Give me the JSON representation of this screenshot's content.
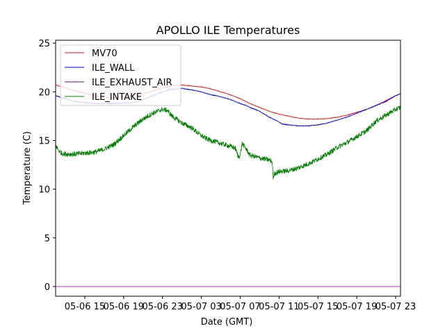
{
  "chart_data": {
    "type": "line",
    "title": "APOLLO ILE Temperatures",
    "xlabel": "Date (GMT)",
    "ylabel": "Temperature (C)",
    "x_unit": "hours since 05-06 12:00 GMT",
    "xlim": [
      0,
      35.5
    ],
    "ylim": [
      -1,
      25.3
    ],
    "grid": false,
    "legend_position": "upper-left",
    "x_ticks": [
      {
        "value": 3,
        "label": "05-06 15"
      },
      {
        "value": 7,
        "label": "05-06 19"
      },
      {
        "value": 11,
        "label": "05-06 23"
      },
      {
        "value": 15,
        "label": "05-07 03"
      },
      {
        "value": 19,
        "label": "05-07 07"
      },
      {
        "value": 23,
        "label": "05-07 11"
      },
      {
        "value": 27,
        "label": "05-07 15"
      },
      {
        "value": 31,
        "label": "05-07 19"
      },
      {
        "value": 35,
        "label": "05-07 23"
      }
    ],
    "y_ticks": [
      {
        "value": 0,
        "label": "0"
      },
      {
        "value": 5,
        "label": "5"
      },
      {
        "value": 10,
        "label": "10"
      },
      {
        "value": 15,
        "label": "15"
      },
      {
        "value": 20,
        "label": "20"
      },
      {
        "value": 25,
        "label": "25"
      }
    ],
    "series": [
      {
        "name": "MV70",
        "color": "#ff0000",
        "noise": 0.03,
        "x": [
          0,
          2,
          4,
          5,
          6,
          7,
          8,
          9,
          10,
          11,
          12,
          13,
          14,
          15,
          16,
          17,
          18,
          19,
          20,
          21,
          22,
          23,
          24,
          25,
          26,
          27,
          28,
          29,
          30,
          31,
          32,
          33,
          34,
          35,
          35.5
        ],
        "values": [
          20.7,
          20.1,
          19.6,
          19.4,
          19.4,
          19.5,
          19.6,
          19.8,
          20.1,
          20.4,
          20.65,
          20.7,
          20.6,
          20.5,
          20.3,
          20.0,
          19.7,
          19.3,
          18.8,
          18.4,
          18.0,
          17.7,
          17.5,
          17.3,
          17.2,
          17.2,
          17.25,
          17.4,
          17.6,
          17.9,
          18.2,
          18.6,
          19.1,
          19.6,
          19.8
        ]
      },
      {
        "name": "ILE_WALL",
        "color": "#0000ff",
        "noise": 0.04,
        "x": [
          0,
          1,
          2,
          4,
          6,
          8,
          9,
          10,
          11,
          12,
          13,
          14,
          15,
          16,
          17,
          18,
          19,
          19.6,
          20,
          21,
          22,
          22.8,
          23,
          23.3,
          24,
          25,
          26,
          27,
          28,
          29,
          30,
          31,
          32,
          33,
          34,
          35,
          35.5
        ],
        "values": [
          19.6,
          19.3,
          19.0,
          18.8,
          18.8,
          18.9,
          19.2,
          19.6,
          20.0,
          20.25,
          20.35,
          20.2,
          20.0,
          19.7,
          19.5,
          19.2,
          18.8,
          18.6,
          18.4,
          18.0,
          17.4,
          17.0,
          16.9,
          16.7,
          16.6,
          16.5,
          16.5,
          16.6,
          16.8,
          17.1,
          17.4,
          17.8,
          18.2,
          18.6,
          19.0,
          19.6,
          19.8
        ]
      },
      {
        "name": "ILE_EXHAUST_AIR",
        "color": "#800080",
        "noise": 0,
        "x": [
          0,
          35.5
        ],
        "values": [
          0.0,
          0.0
        ]
      },
      {
        "name": "ILE_INTAKE",
        "color": "#008000",
        "noise": 0.25,
        "x": [
          0,
          0.3,
          0.6,
          1,
          2,
          3,
          4,
          5,
          6,
          7,
          8,
          9,
          10,
          10.5,
          11,
          11.5,
          12,
          13,
          14,
          15,
          15.5,
          16,
          17,
          18,
          18.5,
          18.8,
          19,
          19.2,
          19.5,
          20,
          21,
          22,
          22.3,
          22.4,
          22.5,
          23,
          24,
          25,
          26,
          27,
          28,
          29,
          30,
          31,
          32,
          33,
          34,
          35,
          35.5
        ],
        "values": [
          14.5,
          14.0,
          13.7,
          13.6,
          13.6,
          13.7,
          13.8,
          14.1,
          14.6,
          15.5,
          16.4,
          17.2,
          17.8,
          18.0,
          18.2,
          18.1,
          17.5,
          16.8,
          16.3,
          15.5,
          15.2,
          15.0,
          14.7,
          14.4,
          14.2,
          13.3,
          13.5,
          14.7,
          14.3,
          13.5,
          13.2,
          13.0,
          12.8,
          11.0,
          11.6,
          11.8,
          11.9,
          12.2,
          12.6,
          13.1,
          13.6,
          14.3,
          14.8,
          15.4,
          16.0,
          17.0,
          17.6,
          18.2,
          18.4
        ]
      }
    ]
  }
}
